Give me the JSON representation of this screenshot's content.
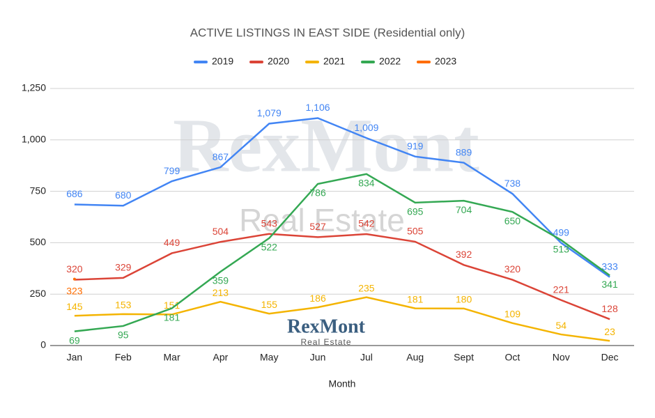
{
  "chart_data": {
    "type": "line",
    "title": "ACTIVE LISTINGS IN EAST SIDE (Residential only)",
    "x_label": "Month",
    "watermark": {
      "brand": "RexMont",
      "tagline": "Real Estate"
    },
    "logo": {
      "brand": "RexMont",
      "tagline": "Real Estate"
    },
    "categories": [
      "Jan",
      "Feb",
      "Mar",
      "Apr",
      "May",
      "Jun",
      "Jul",
      "Aug",
      "Sept",
      "Oct",
      "Nov",
      "Dec"
    ],
    "series": [
      {
        "name": "2019",
        "color": "#4285f4",
        "values": [
          686,
          680,
          799,
          867,
          1079,
          1106,
          1009,
          919,
          889,
          738,
          499,
          333
        ],
        "value_labels": [
          "686",
          "680",
          "799",
          "867",
          "1,079",
          "1,106",
          "1,009",
          "919",
          "889",
          "738",
          "499",
          "333"
        ]
      },
      {
        "name": "2020",
        "color": "#db4437",
        "values": [
          320,
          329,
          449,
          504,
          543,
          527,
          542,
          505,
          392,
          320,
          221,
          128
        ]
      },
      {
        "name": "2021",
        "color": "#f4b400",
        "values": [
          145,
          153,
          151,
          213,
          155,
          186,
          235,
          181,
          180,
          109,
          54,
          23
        ]
      },
      {
        "name": "2022",
        "color": "#34a853",
        "values": [
          69,
          95,
          181,
          359,
          522,
          786,
          834,
          695,
          704,
          650,
          513,
          341
        ]
      },
      {
        "name": "2023",
        "color": "#ff6d01",
        "values": [
          323,
          null,
          null,
          null,
          null,
          null,
          null,
          null,
          null,
          null,
          null,
          null
        ]
      }
    ],
    "ylim": [
      0,
      1250
    ],
    "yticks": [
      0,
      {
        "value": 250,
        "label": "250"
      },
      {
        "value": 500,
        "label": "500"
      },
      {
        "value": 750,
        "label": "750"
      },
      {
        "value": 1000,
        "label": "1,000"
      },
      {
        "value": 1250,
        "label": "1,250"
      }
    ],
    "grid": true,
    "legend": "top"
  }
}
